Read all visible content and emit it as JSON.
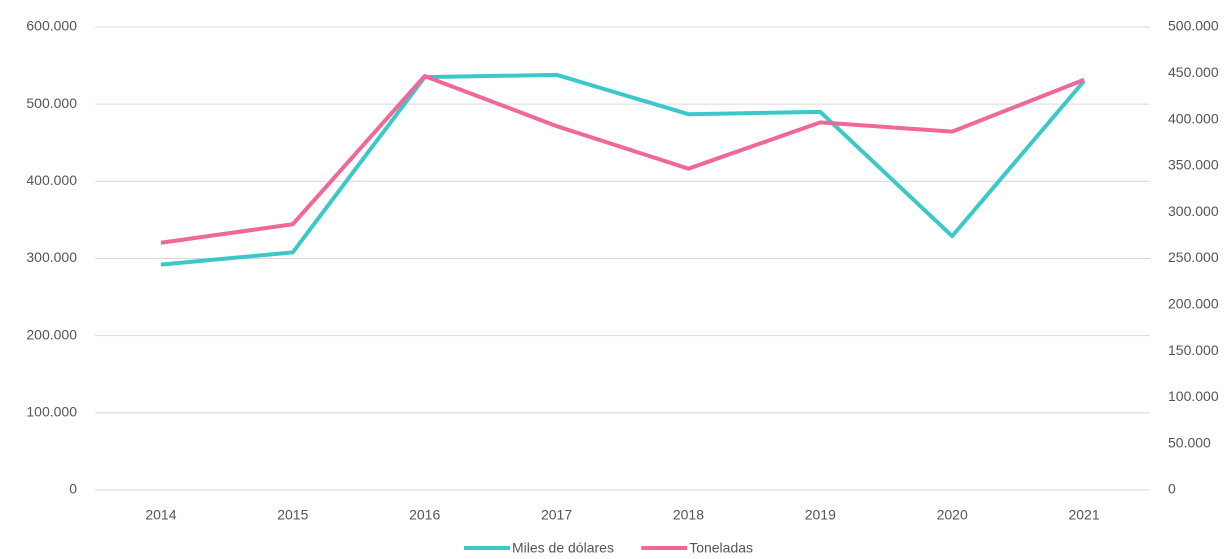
{
  "chart_data": {
    "type": "line",
    "categories": [
      "2014",
      "2015",
      "2016",
      "2017",
      "2018",
      "2019",
      "2020",
      "2021"
    ],
    "series": [
      {
        "name": "Miles de dólares",
        "color": "#3cc8c8",
        "values": [
          292000,
          308000,
          535000,
          538000,
          487000,
          490000,
          329000,
          530000
        ]
      },
      {
        "name": "Toneladas",
        "color": "#f0679a",
        "axis": "y2",
        "values": [
          267000,
          287000,
          447000,
          393000,
          347000,
          397000,
          387000,
          443000
        ]
      }
    ],
    "ylim": [
      0,
      600000
    ],
    "yticks": [
      0,
      {
        "value": 100000,
        "label": "100.000"
      },
      {
        "value": 200000,
        "label": "200.000"
      },
      {
        "value": 300000,
        "label": "300.000"
      },
      {
        "value": 400000,
        "label": "400.000"
      },
      {
        "value": 500000,
        "label": "500.000"
      },
      {
        "value": 600000,
        "label": "600.000"
      }
    ],
    "y2lim": [
      0,
      500000
    ],
    "y2ticks": [
      0,
      {
        "value": 50000,
        "label": "50.000"
      },
      {
        "value": 100000,
        "label": "100.000"
      },
      {
        "value": 150000,
        "label": "150.000"
      },
      {
        "value": 200000,
        "label": "200.000"
      },
      {
        "value": 250000,
        "label": "250.000"
      },
      {
        "value": 300000,
        "label": "300.000"
      },
      {
        "value": 350000,
        "label": "350.000"
      },
      {
        "value": 400000,
        "label": "400.000"
      },
      {
        "value": 450000,
        "label": "450.000"
      },
      {
        "value": 500000,
        "label": "500.000"
      }
    ],
    "grid": true,
    "legend": "bottom"
  }
}
